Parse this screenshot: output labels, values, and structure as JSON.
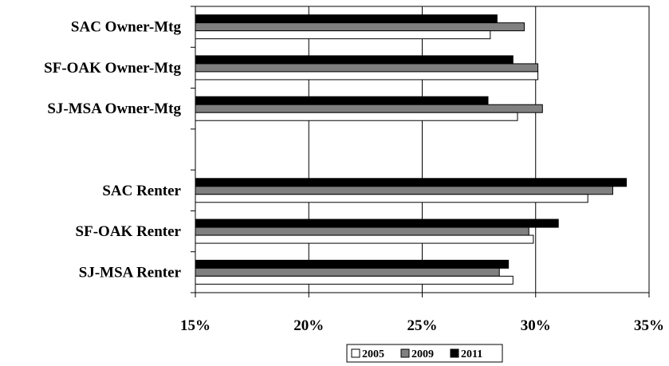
{
  "chart_data": {
    "type": "bar",
    "orientation": "horizontal",
    "categories": [
      "SAC Owner-Mtg",
      "SF-OAK Owner-Mtg",
      "SJ-MSA Owner-Mtg",
      "",
      "SAC Renter",
      "SF-OAK Renter",
      "SJ-MSA Renter"
    ],
    "series": [
      {
        "name": "2005",
        "color": "#ffffff",
        "values": [
          28.0,
          30.1,
          29.2,
          null,
          32.3,
          29.9,
          29.0
        ]
      },
      {
        "name": "2009",
        "color": "#808080",
        "values": [
          29.5,
          30.1,
          30.3,
          null,
          33.4,
          29.7,
          28.4
        ]
      },
      {
        "name": "2011",
        "color": "#000000",
        "values": [
          28.3,
          29.0,
          27.9,
          null,
          34.0,
          31.0,
          28.8
        ]
      }
    ],
    "xlim": [
      15,
      35
    ],
    "xticks": [
      15,
      20,
      25,
      30,
      35
    ],
    "tick_format": "%",
    "gridlines": "vertical",
    "legend": "bottom-center",
    "title": "",
    "xlabel": "",
    "ylabel": ""
  }
}
